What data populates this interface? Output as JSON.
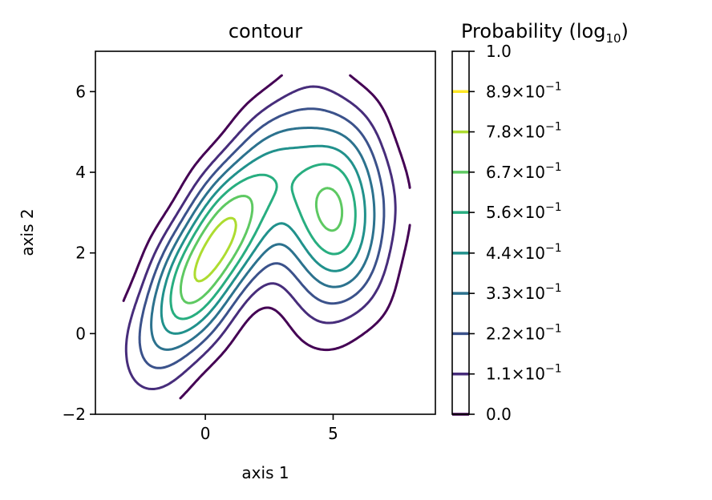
{
  "chart_data": {
    "type": "contour",
    "title": "contour",
    "xlabel": "axis 1",
    "ylabel": "axis 2",
    "xlim": [
      -4.3,
      9.0
    ],
    "ylim": [
      -2,
      7
    ],
    "xticks": [
      0,
      5
    ],
    "xtick_labels": [
      "0",
      "5"
    ],
    "yticks": [
      -2,
      0,
      2,
      4,
      6
    ],
    "ytick_labels": [
      "−2",
      "0",
      "2",
      "4",
      "6"
    ],
    "grid": false,
    "modes": [
      {
        "name": "",
        "center": [
          0.3,
          2.0
        ],
        "peak": 0.95
      },
      {
        "name": "",
        "center": [
          5.0,
          3.0
        ],
        "peak": 0.8
      }
    ],
    "colorbar": {
      "title_main": "Probability (log",
      "title_sub": "10",
      "title_end": ")",
      "levels": [
        0.0,
        0.111,
        0.222,
        0.333,
        0.444,
        0.556,
        0.667,
        0.778,
        0.889,
        1.0
      ],
      "tick_mantissa": [
        "0.0",
        "1.1×10",
        "2.2×10",
        "3.3×10",
        "4.4×10",
        "5.6×10",
        "6.7×10",
        "7.8×10",
        "8.9×10",
        "1.0"
      ],
      "tick_exponent": [
        "",
        "−1",
        "−1",
        "−1",
        "−1",
        "−1",
        "−1",
        "−1",
        "−1",
        ""
      ],
      "colors": [
        "#440154",
        "#472d7b",
        "#3b528b",
        "#2c728e",
        "#21918c",
        "#28ae80",
        "#5ec962",
        "#addc30",
        "#fde725"
      ]
    }
  }
}
